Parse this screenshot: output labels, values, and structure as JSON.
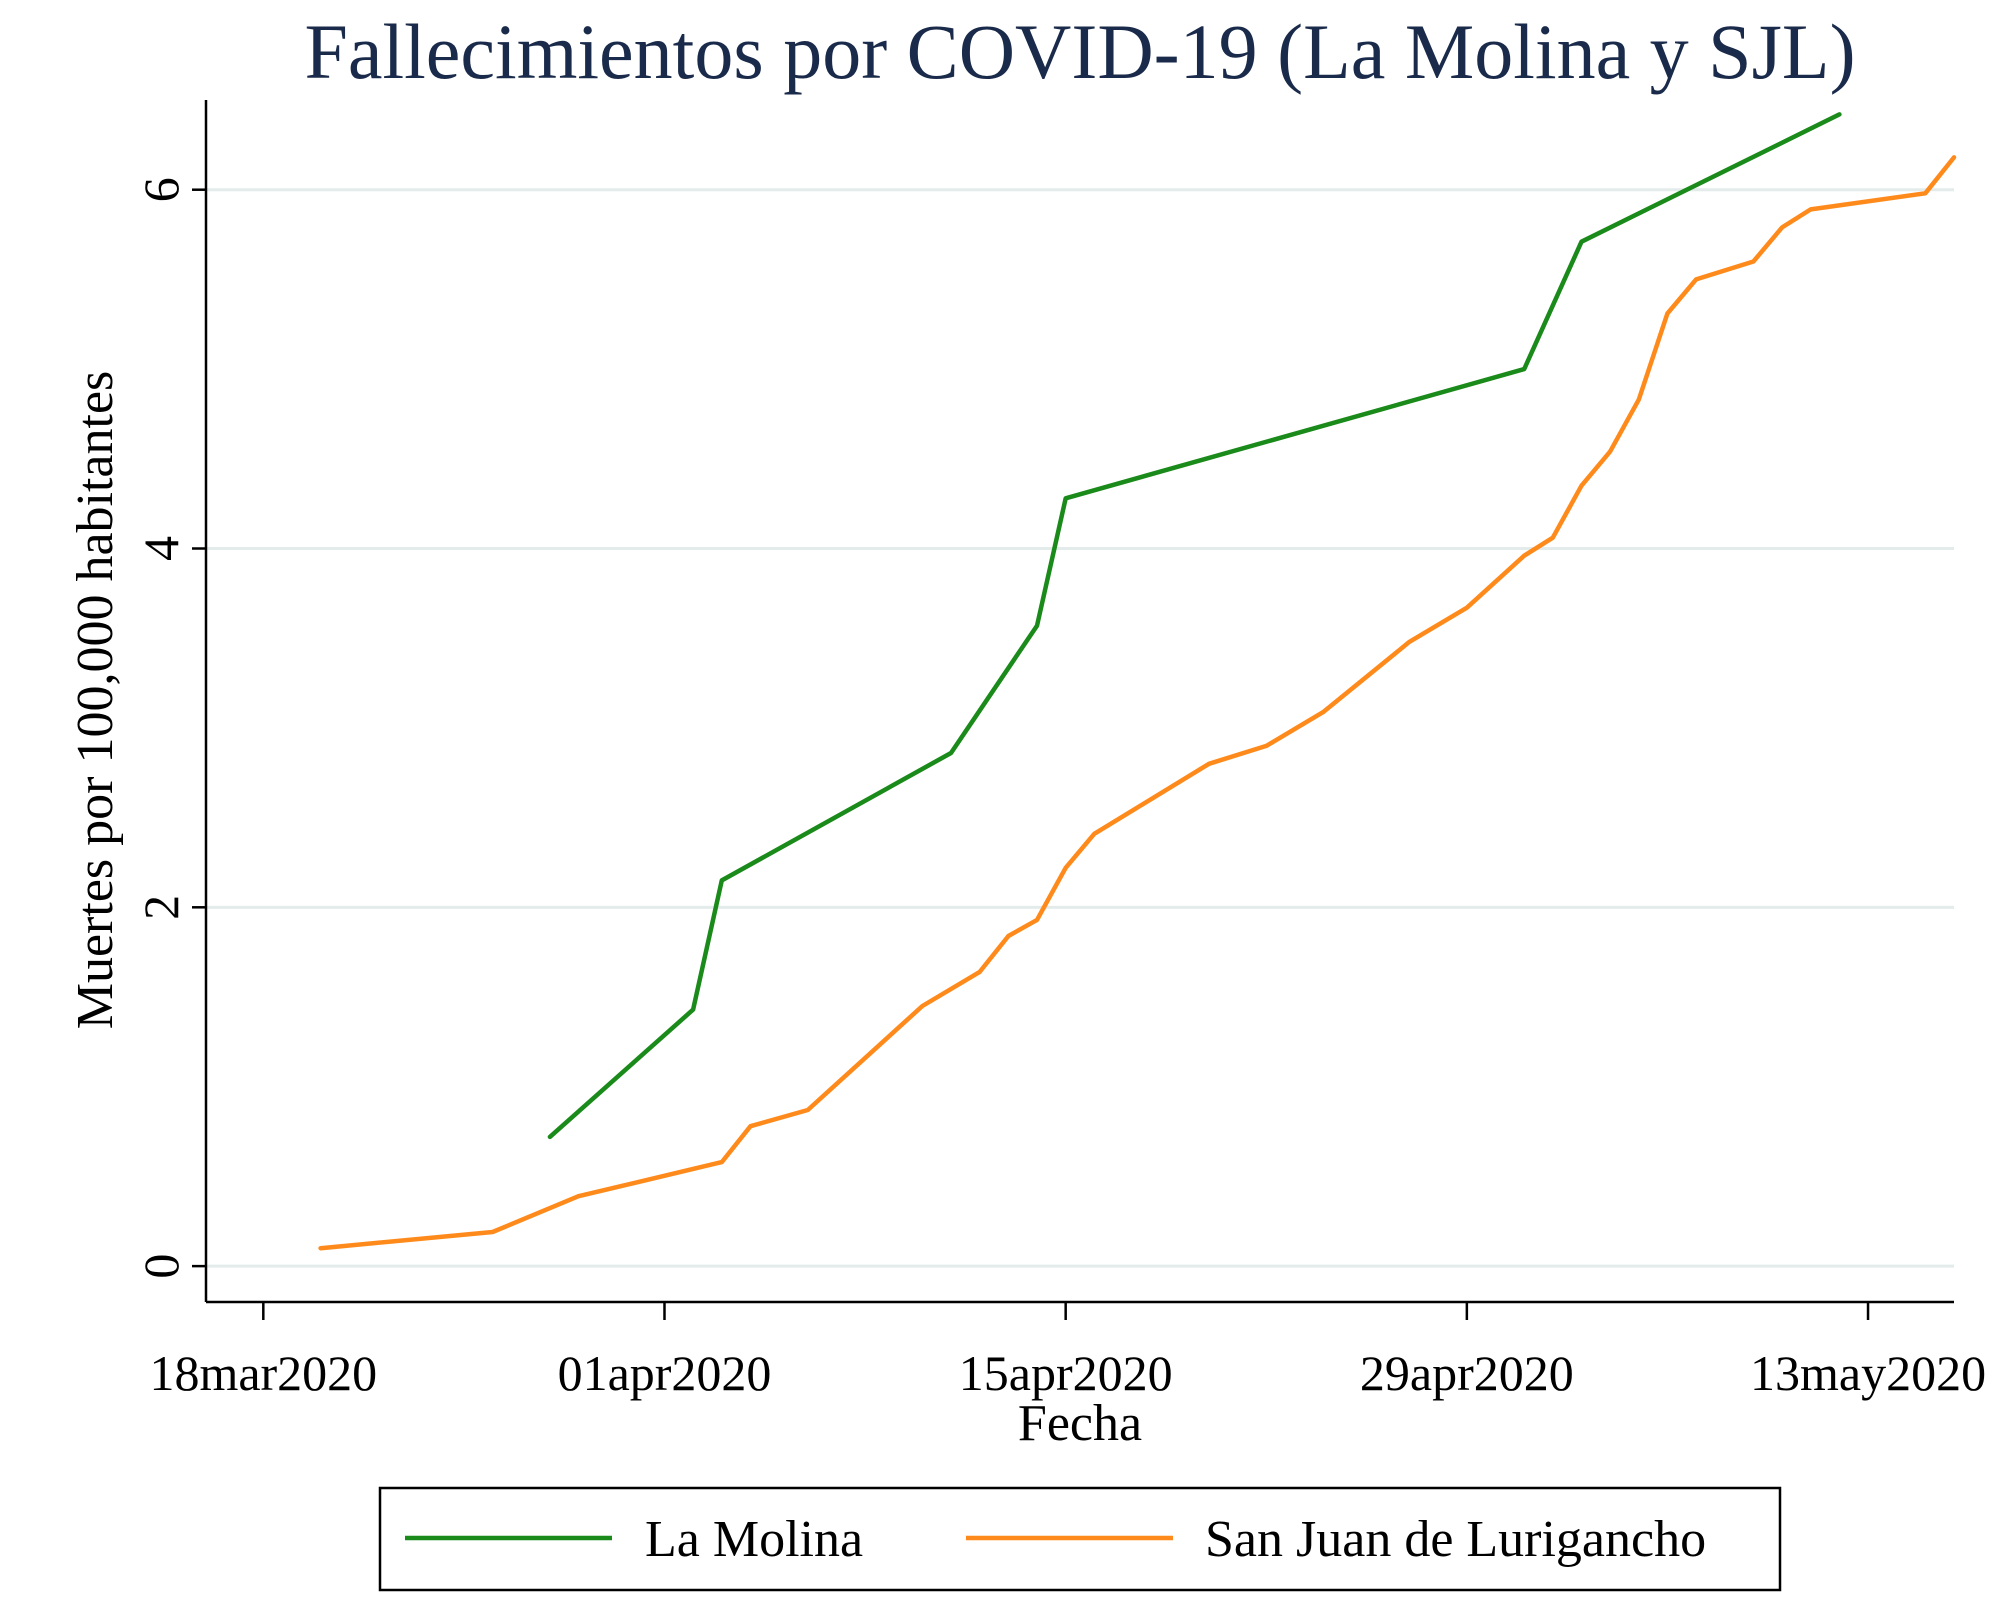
{
  "chart_data": {
    "type": "line",
    "title": "Fallecimientos por COVID-19 (La Molina y SJL)",
    "xlabel": "Fecha",
    "ylabel": "Muertes por 100,000 habitantes",
    "xlim": [
      "2020-03-16",
      "2020-05-16"
    ],
    "ylim": [
      -0.2,
      6.5
    ],
    "x_ticks": [
      {
        "date": "2020-03-18",
        "label": "18mar2020"
      },
      {
        "date": "2020-04-01",
        "label": "01apr2020"
      },
      {
        "date": "2020-04-15",
        "label": "15apr2020"
      },
      {
        "date": "2020-04-29",
        "label": "29apr2020"
      },
      {
        "date": "2020-05-13",
        "label": "13may2020"
      }
    ],
    "y_ticks": [
      0,
      2,
      4,
      6
    ],
    "grid": true,
    "legend_position": "bottom",
    "series": [
      {
        "name": "La Molina",
        "color": "#1a8a1a",
        "points": [
          [
            "2020-03-28",
            0.72
          ],
          [
            "2020-04-02",
            1.43
          ],
          [
            "2020-04-03",
            2.15
          ],
          [
            "2020-04-11",
            2.86
          ],
          [
            "2020-04-14",
            3.57
          ],
          [
            "2020-04-15",
            4.28
          ],
          [
            "2020-05-01",
            5.0
          ],
          [
            "2020-05-03",
            5.71
          ],
          [
            "2020-05-12",
            6.42
          ]
        ]
      },
      {
        "name": "San Juan de Lurigancho",
        "color": "#ff8a1c",
        "points": [
          [
            "2020-03-20",
            0.1
          ],
          [
            "2020-03-26",
            0.19
          ],
          [
            "2020-03-29",
            0.39
          ],
          [
            "2020-04-03",
            0.58
          ],
          [
            "2020-04-04",
            0.78
          ],
          [
            "2020-04-06",
            0.87
          ],
          [
            "2020-04-10",
            1.45
          ],
          [
            "2020-04-12",
            1.64
          ],
          [
            "2020-04-13",
            1.84
          ],
          [
            "2020-04-14",
            1.93
          ],
          [
            "2020-04-15",
            2.22
          ],
          [
            "2020-04-16",
            2.41
          ],
          [
            "2020-04-20",
            2.8
          ],
          [
            "2020-04-22",
            2.9
          ],
          [
            "2020-04-24",
            3.09
          ],
          [
            "2020-04-27",
            3.48
          ],
          [
            "2020-04-29",
            3.67
          ],
          [
            "2020-05-01",
            3.96
          ],
          [
            "2020-05-02",
            4.06
          ],
          [
            "2020-05-03",
            4.35
          ],
          [
            "2020-05-04",
            4.54
          ],
          [
            "2020-05-05",
            4.83
          ],
          [
            "2020-05-06",
            5.31
          ],
          [
            "2020-05-07",
            5.5
          ],
          [
            "2020-05-09",
            5.6
          ],
          [
            "2020-05-10",
            5.79
          ],
          [
            "2020-05-11",
            5.89
          ],
          [
            "2020-05-15",
            5.98
          ],
          [
            "2020-05-16",
            6.18
          ]
        ]
      }
    ]
  }
}
